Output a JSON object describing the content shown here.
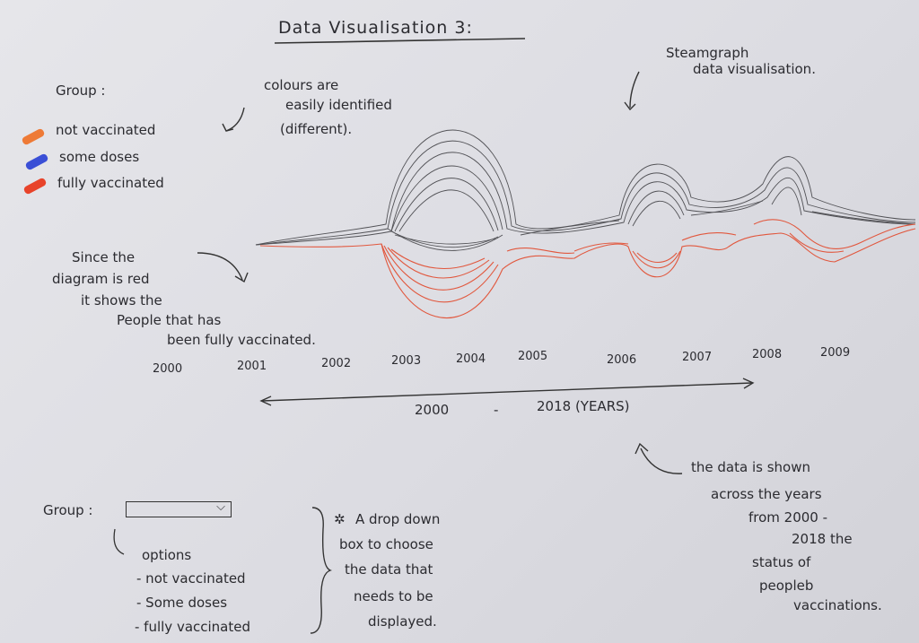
{
  "title": "Data Visualisation 3:",
  "legend": {
    "heading": "Group :",
    "items": [
      {
        "label": "not vaccinated",
        "color": "#ee7a36"
      },
      {
        "label": "some doses",
        "color": "#3a4fd6"
      },
      {
        "label": "fully vaccinated",
        "color": "#e8432a"
      }
    ]
  },
  "annotations": {
    "colours_line1": "colours are",
    "colours_line2": "easily identified",
    "colours_line3": "(different).",
    "stream_line1": "Steamgraph",
    "stream_line2": "data visualisation.",
    "red_line1": "Since the",
    "red_line2": "diagram is red",
    "red_line3": "it shows the",
    "red_line4": "People that has",
    "red_line5": "been fully vaccinated.",
    "across_line1": "the data is shown",
    "across_line2": "across the years",
    "across_line3": "from 2000 -",
    "across_line4": "2018 the",
    "across_line5": "status of",
    "across_line6": "peopleb",
    "across_line7": "vaccinations."
  },
  "chart_data": {
    "type": "area",
    "subtype": "streamgraph",
    "x_tick_labels": [
      "2000",
      "2001",
      "2002",
      "2003",
      "2004",
      "2005",
      "2006",
      "2007",
      "2008",
      "2009"
    ],
    "range_label_start": "2000",
    "range_dash": "-",
    "range_label_end": "2018 (YEARS)"
  },
  "dropdown": {
    "label": "Group :",
    "selected": "",
    "chevron": "⌵",
    "options_heading": "options",
    "options": [
      "- not vaccinated",
      "- Some doses",
      "- fully vaccinated"
    ]
  },
  "dropdown_note": {
    "line1": "A drop down",
    "line2": "box to choose",
    "line3": "the data that",
    "line4": "needs to be",
    "line5": "displayed."
  },
  "note_star": "✲"
}
